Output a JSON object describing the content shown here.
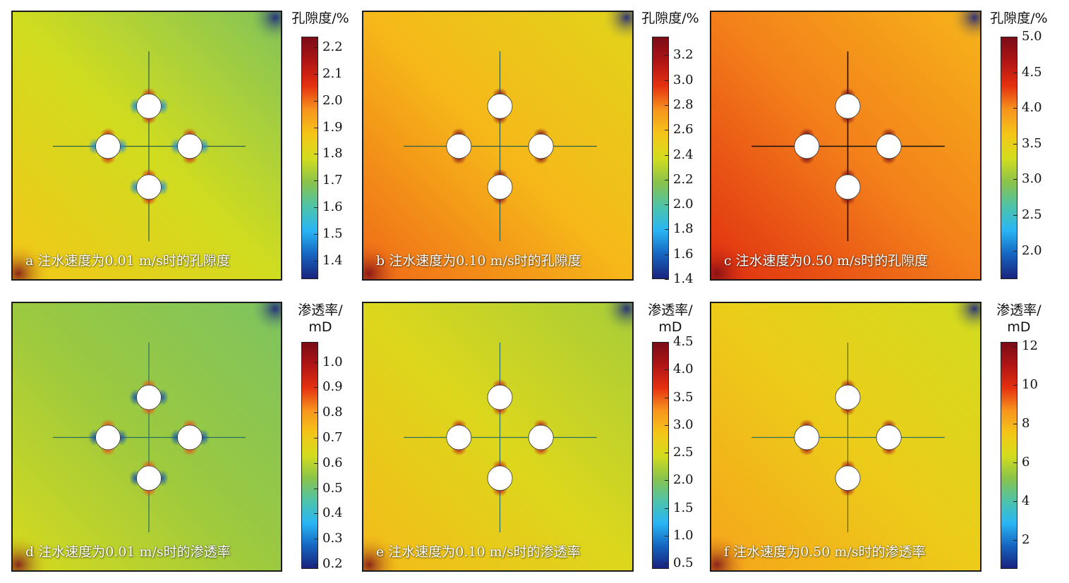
{
  "colormap": [
    "#1a237e",
    "#1565c0",
    "#29b6f6",
    "#4fc3a8",
    "#8bc34a",
    "#d4dd1d",
    "#f5c518",
    "#f7941d",
    "#e53010",
    "#b01515",
    "#7a0c18"
  ],
  "chart_data": [
    {
      "id": "a",
      "type": "heatmap",
      "caption": "a 注水速度为0.01 m/s时的孔隙度",
      "colorbar_title": [
        "孔隙度/%"
      ],
      "range": [
        1.33,
        2.24
      ],
      "ticks": [
        "2.2",
        "2.1",
        "2.0",
        "1.9",
        "1.8",
        "1.7",
        "1.6",
        "1.5",
        "1.4"
      ],
      "tick_values": [
        2.2,
        2.1,
        2.0,
        1.9,
        1.8,
        1.7,
        1.6,
        1.5,
        1.4
      ],
      "center_value": 1.78,
      "corner_low_value": 1.87,
      "corner_high_value": 1.68
    },
    {
      "id": "b",
      "type": "heatmap",
      "caption": "b 注水速度为0.10 m/s时的孔隙度",
      "colorbar_title": [
        "孔隙度/%"
      ],
      "range": [
        1.4,
        3.35
      ],
      "ticks": [
        "3.2",
        "3.0",
        "2.8",
        "2.6",
        "2.4",
        "2.2",
        "2.0",
        "1.8",
        "1.6",
        "1.4"
      ],
      "tick_values": [
        3.2,
        3.0,
        2.8,
        2.6,
        2.4,
        2.2,
        2.0,
        1.8,
        1.6,
        1.4
      ],
      "center_value": 2.62,
      "corner_low_value": 2.85,
      "corner_high_value": 2.45
    },
    {
      "id": "c",
      "type": "heatmap",
      "caption": "c 注水速度为0.50 m/s时的孔隙度",
      "colorbar_title": [
        "孔隙度/%"
      ],
      "range": [
        1.6,
        5.0
      ],
      "ticks": [
        "5.0",
        "4.5",
        "4.0",
        "3.5",
        "3.0",
        "2.5",
        "2.0"
      ],
      "tick_values": [
        5.0,
        4.5,
        4.0,
        3.5,
        3.0,
        2.5,
        2.0
      ],
      "center_value": 4.05,
      "corner_low_value": 4.35,
      "corner_high_value": 3.75
    },
    {
      "id": "d",
      "type": "heatmap",
      "caption": "d 注水速度为0.01 m/s时的渗透率",
      "colorbar_title": [
        "渗透率/",
        "mD"
      ],
      "range": [
        0.18,
        1.08
      ],
      "ticks": [
        "1.0",
        "0.9",
        "0.8",
        "0.7",
        "0.6",
        "0.5",
        "0.4",
        "0.3",
        "0.2"
      ],
      "tick_values": [
        1.0,
        0.9,
        0.8,
        0.7,
        0.6,
        0.5,
        0.4,
        0.3,
        0.2
      ],
      "center_value": 0.56,
      "corner_low_value": 0.64,
      "corner_high_value": 0.52
    },
    {
      "id": "e",
      "type": "heatmap",
      "caption": "e 注水速度为0.10 m/s时的渗透率",
      "colorbar_title": [
        "渗透率/",
        "mD"
      ],
      "range": [
        0.4,
        4.5
      ],
      "ticks": [
        "4.5",
        "4.0",
        "3.5",
        "3.0",
        "2.5",
        "2.0",
        "1.5",
        "1.0",
        "0.5"
      ],
      "tick_values": [
        4.5,
        4.0,
        3.5,
        3.0,
        2.5,
        2.0,
        1.5,
        1.0,
        0.5
      ],
      "center_value": 2.55,
      "corner_low_value": 2.95,
      "corner_high_value": 2.2
    },
    {
      "id": "f",
      "type": "heatmap",
      "caption": "f 注水速度为0.50 m/s时的渗透率",
      "colorbar_title": [
        "渗透率/",
        "mD"
      ],
      "range": [
        0.5,
        12.2
      ],
      "ticks": [
        "12",
        "10",
        "8",
        "6",
        "4",
        "2"
      ],
      "tick_values": [
        12,
        10,
        8,
        6,
        4,
        2
      ],
      "center_value": 7.2,
      "corner_low_value": 8.3,
      "corner_high_value": 6.3
    }
  ]
}
